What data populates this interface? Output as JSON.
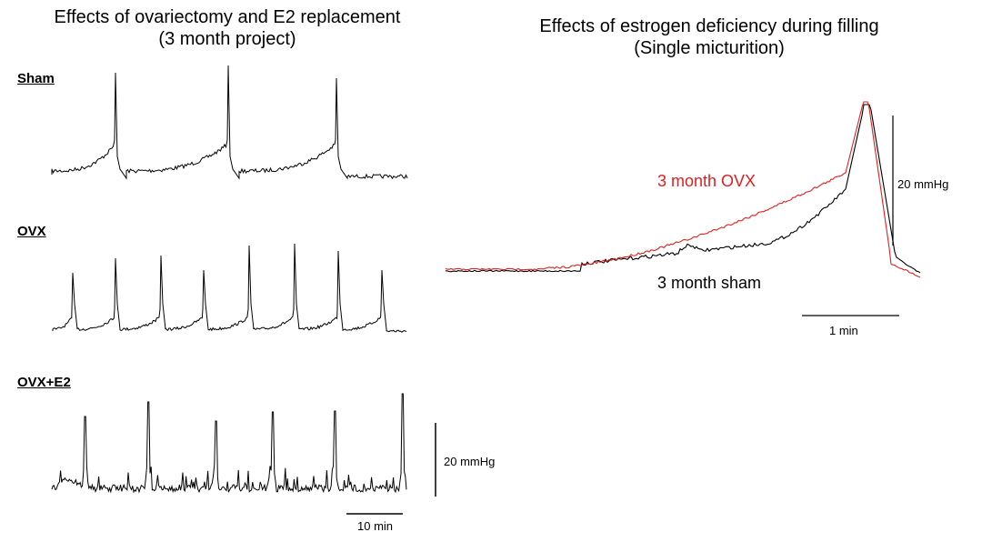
{
  "left_panel": {
    "title_line1": "Effects of ovariectomy and E2 replacement",
    "title_line2": "(3 month project)",
    "traces": [
      {
        "label": "Sham"
      },
      {
        "label": "OVX"
      },
      {
        "label": "OVX+E2"
      }
    ],
    "scale_vertical": "20 mmHg",
    "scale_horizontal": "10 min"
  },
  "right_panel": {
    "title_line1": "Effects of estrogen deficiency during filling",
    "title_line2": "(Single micturition)",
    "series": [
      {
        "name": "3 month OVX",
        "color": "#e02020"
      },
      {
        "name": "3 month sham",
        "color": "#000000"
      }
    ],
    "scale_vertical": "20 mmHg",
    "scale_horizontal": "1 min"
  },
  "chart_data": [
    {
      "type": "line",
      "title": "Effects of ovariectomy and E2 replacement (3 month project)",
      "series": [
        {
          "name": "Sham",
          "peaks_in_window": 3
        },
        {
          "name": "OVX",
          "peaks_in_window": 8
        },
        {
          "name": "OVX+E2",
          "peaks_in_window": 6
        }
      ],
      "scale": {
        "pressure": "20 mmHg",
        "time": "10 min"
      }
    },
    {
      "type": "line",
      "title": "Effects of estrogen deficiency during filling (Single micturition)",
      "series": [
        {
          "name": "3 month OVX",
          "color": "#e02020"
        },
        {
          "name": "3 month sham",
          "color": "#000000"
        }
      ],
      "scale": {
        "pressure": "20 mmHg",
        "time": "1 min"
      }
    }
  ]
}
